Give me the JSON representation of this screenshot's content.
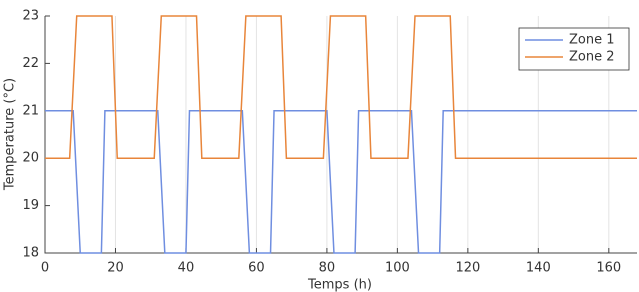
{
  "chart_data": {
    "type": "line",
    "xlabel": "Temps (h)",
    "ylabel": "Temperature (°C)",
    "xlim": [
      0,
      168
    ],
    "xticks": [
      0,
      20,
      40,
      60,
      80,
      100,
      120,
      140,
      160
    ],
    "ylim": [
      18,
      23
    ],
    "yticks": [
      18,
      19,
      20,
      21,
      22,
      23
    ],
    "xgrid": true,
    "legend": "upper-right",
    "series": [
      {
        "name": "Zone 1",
        "color": "#6f8ee0",
        "x": [
          0,
          8,
          10,
          16,
          17,
          32,
          34,
          40,
          41,
          56,
          58,
          64,
          65,
          80,
          82,
          88,
          89,
          104,
          106,
          112,
          113,
          168
        ],
        "values": [
          21,
          21,
          18,
          18,
          21,
          21,
          18,
          18,
          21,
          21,
          18,
          18,
          21,
          21,
          18,
          18,
          21,
          21,
          18,
          18,
          21,
          21
        ]
      },
      {
        "name": "Zone 2",
        "color": "#e8853a",
        "x": [
          0,
          7,
          9,
          19,
          20.5,
          31,
          33,
          43,
          44.5,
          55,
          57,
          67,
          68.5,
          79,
          81,
          91,
          92.5,
          103,
          105,
          115,
          116.5,
          168
        ],
        "values": [
          20,
          20,
          23,
          23,
          20,
          20,
          23,
          23,
          20,
          20,
          23,
          23,
          20,
          20,
          23,
          23,
          20,
          20,
          23,
          23,
          20,
          20
        ]
      }
    ]
  }
}
